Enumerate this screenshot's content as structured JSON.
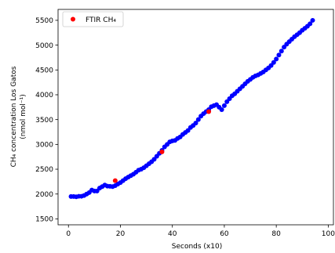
{
  "chart_data": {
    "type": "scatter",
    "xlabel": "Seconds (x10)",
    "ylabel_line1": "CH₄ concentration Los Gatos",
    "ylabel_line2": "(nmol mol⁻¹)",
    "xlim": [
      -4,
      102
    ],
    "ylim": [
      1380,
      5720
    ],
    "x_ticks": [
      0,
      20,
      40,
      60,
      80,
      100
    ],
    "x_tick_labels": [
      "0",
      "20",
      "40",
      "60",
      "80",
      "100"
    ],
    "y_ticks": [
      1500,
      2000,
      2500,
      3000,
      3500,
      4000,
      4500,
      5000,
      5500
    ],
    "y_tick_labels": [
      "1500",
      "2000",
      "2500",
      "3000",
      "3500",
      "4000",
      "4500",
      "5000",
      "5500"
    ],
    "grid": false,
    "legend": {
      "placement": "top-left",
      "entries": [
        "FTIR CH₄"
      ]
    },
    "series": [
      {
        "color": "#0000ff",
        "x": [
          1,
          2,
          3,
          4,
          5,
          6,
          7,
          8,
          9,
          10,
          11,
          12,
          13,
          14,
          15,
          16,
          17,
          18,
          19,
          20,
          21,
          22,
          23,
          24,
          25,
          26,
          27,
          28,
          29,
          30,
          31,
          32,
          33,
          34,
          35,
          36,
          37,
          38,
          39,
          40,
          41,
          42,
          43,
          44,
          45,
          46,
          47,
          48,
          49,
          50,
          51,
          52,
          53,
          54,
          55,
          56,
          57,
          58,
          59,
          60,
          61,
          62,
          63,
          64,
          65,
          66,
          67,
          68,
          69,
          70,
          71,
          72,
          73,
          74,
          75,
          76,
          77,
          78,
          79,
          80,
          81,
          82,
          83,
          84,
          85,
          86,
          87,
          88,
          89,
          90,
          91,
          92,
          93,
          94
        ],
        "y": [
          1950,
          1950,
          1945,
          1955,
          1955,
          1970,
          2000,
          2030,
          2080,
          2060,
          2060,
          2120,
          2150,
          2180,
          2160,
          2155,
          2150,
          2170,
          2200,
          2230,
          2270,
          2310,
          2340,
          2370,
          2400,
          2440,
          2480,
          2500,
          2530,
          2570,
          2610,
          2650,
          2700,
          2760,
          2820,
          2880,
          2950,
          3000,
          3050,
          3070,
          3080,
          3120,
          3150,
          3200,
          3240,
          3280,
          3340,
          3380,
          3430,
          3500,
          3570,
          3620,
          3660,
          3700,
          3760,
          3780,
          3800,
          3750,
          3700,
          3780,
          3860,
          3920,
          3980,
          4020,
          4070,
          4120,
          4170,
          4220,
          4270,
          4310,
          4350,
          4380,
          4400,
          4430,
          4460,
          4500,
          4540,
          4590,
          4650,
          4720,
          4800,
          4880,
          4960,
          5020,
          5070,
          5120,
          5170,
          5210,
          5250,
          5300,
          5340,
          5380,
          5430,
          5500
        ]
      },
      {
        "name": "FTIR CH₄",
        "color": "#ff0000",
        "x": [
          18,
          36,
          54
        ],
        "y": [
          2270,
          2850,
          3660
        ]
      }
    ]
  }
}
